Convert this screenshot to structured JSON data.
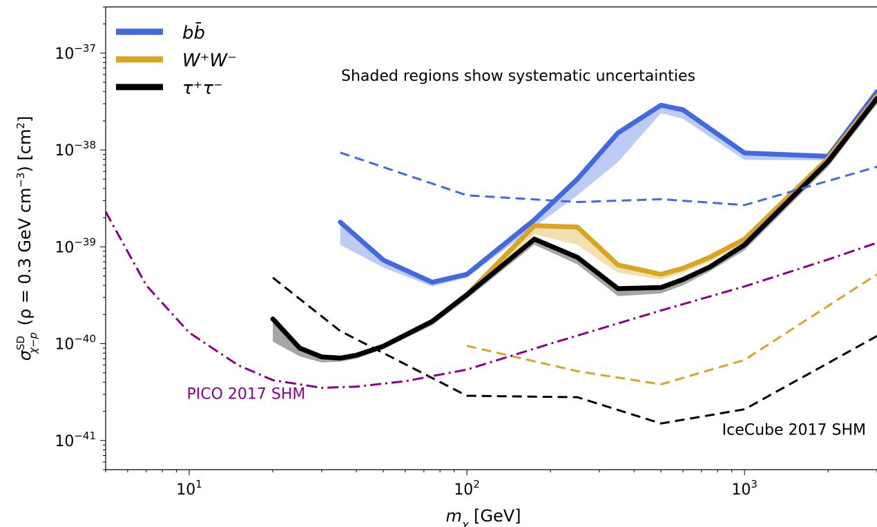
{
  "chart_data": {
    "type": "line",
    "xscale": "log",
    "yscale": "log",
    "xlim": [
      5,
      3000
    ],
    "ylim": [
      5e-42,
      3e-37
    ],
    "xlabel": {
      "base": "m",
      "sub": "χ",
      "rest": " [GeV]"
    },
    "ylabel": {
      "sym": "σ",
      "sup": "SD",
      "sub": "χ−p",
      "rest": " (ρ = 0.3 GeV cm",
      "unit_exp": "−3",
      "rest2": ") [cm",
      "unit_exp2": "2",
      "rest3": "]"
    },
    "xticks": [
      {
        "value": 10,
        "base": "10",
        "exp": "1"
      },
      {
        "value": 100,
        "base": "10",
        "exp": "2"
      },
      {
        "value": 1000,
        "base": "10",
        "exp": "3"
      }
    ],
    "yticks": [
      {
        "value": 1e-41,
        "base": "10",
        "exp": "−41"
      },
      {
        "value": 1e-40,
        "base": "10",
        "exp": "−40"
      },
      {
        "value": 1e-39,
        "base": "10",
        "exp": "−39"
      },
      {
        "value": 1e-38,
        "base": "10",
        "exp": "−38"
      },
      {
        "value": 1e-37,
        "base": "10",
        "exp": "−37"
      }
    ],
    "legend": {
      "placement": "top-left",
      "entries": [
        {
          "label": "bb̄",
          "color": "#4169e1"
        },
        {
          "label": "W⁺W⁻",
          "color": "#daa520"
        },
        {
          "label": "τ⁺τ⁻",
          "color": "#000000"
        }
      ]
    },
    "annotation": "Shaded regions show systematic uncertainties",
    "series": [
      {
        "channel": "bb",
        "style": "solid",
        "color": "#4169e1",
        "x": [
          35,
          50,
          75,
          100,
          175,
          250,
          350,
          500,
          600,
          1000,
          2000,
          3000
        ],
        "y": [
          1.8e-39,
          7.3e-40,
          4.3e-40,
          5.2e-40,
          1.9e-39,
          5e-39,
          1.5e-38,
          2.9e-38,
          2.6e-38,
          9.3e-39,
          8.6e-39,
          4e-38
        ],
        "y_low": [
          1.05e-39,
          6.1e-40,
          3.9e-40,
          4.8e-40,
          1.6e-39,
          3.4e-39,
          7.5e-39,
          2.4e-38,
          2.1e-38,
          7.9e-39,
          7.8e-39,
          3.2e-38
        ]
      },
      {
        "channel": "WW",
        "style": "solid",
        "color": "#daa520",
        "x": [
          100,
          175,
          250,
          350,
          500,
          600,
          750,
          1000,
          2000,
          3000
        ],
        "y": [
          3.2e-40,
          1.65e-39,
          1.6e-39,
          6.5e-40,
          5.2e-40,
          6e-40,
          7.8e-40,
          1.2e-39,
          8.2e-39,
          3.6e-38
        ],
        "y_low": [
          2.9e-40,
          1.35e-39,
          1.05e-39,
          5.4e-40,
          4.6e-40,
          5.4e-40,
          7e-40,
          1.1e-39,
          7.3e-39,
          3e-38
        ]
      },
      {
        "channel": "tautau",
        "style": "solid",
        "color": "#000000",
        "x": [
          20,
          25,
          30,
          35,
          40,
          50,
          75,
          100,
          175,
          250,
          350,
          500,
          600,
          750,
          1000,
          2000,
          3000
        ],
        "y": [
          1.8e-40,
          9e-41,
          7.3e-41,
          7.1e-41,
          7.6e-41,
          9.4e-41,
          1.7e-40,
          3.2e-40,
          1.2e-39,
          7.8e-40,
          3.7e-40,
          3.8e-40,
          4.6e-40,
          6.2e-40,
          1.05e-39,
          7.6e-39,
          3.4e-38
        ],
        "y_low": [
          1.05e-40,
          7.4e-41,
          6.4e-41,
          6.5e-41,
          7e-41,
          8.8e-41,
          1.55e-40,
          2.9e-40,
          1.05e-39,
          6.6e-40,
          3.1e-40,
          3.3e-40,
          4e-40,
          5.6e-40,
          9.2e-40,
          6.7e-39,
          3e-38
        ]
      },
      {
        "channel": "IceCube bb",
        "style": "dashed",
        "color": "#4169e1",
        "x": [
          35,
          100,
          250,
          500,
          1000,
          3000
        ],
        "y": [
          9.4e-39,
          3.4e-39,
          2.9e-39,
          3.1e-39,
          2.7e-39,
          6.7e-39
        ]
      },
      {
        "channel": "IceCube WW",
        "style": "dashed",
        "color": "#daa520",
        "x": [
          100,
          250,
          500,
          1000,
          3000
        ],
        "y": [
          9.5e-41,
          5.2e-41,
          3.8e-41,
          6.8e-41,
          5.2e-40
        ]
      },
      {
        "channel": "IceCube tautau",
        "style": "dashed",
        "color": "#000000",
        "x": [
          20,
          35,
          100,
          250,
          500,
          1000,
          3000
        ],
        "y": [
          4.8e-40,
          1.35e-40,
          2.9e-41,
          2.8e-41,
          1.5e-41,
          2.1e-41,
          1.2e-40
        ]
      },
      {
        "channel": "PICO",
        "style": "dashdot",
        "color": "#8b008b",
        "x": [
          5,
          7,
          10,
          15,
          20,
          30,
          40,
          60,
          100,
          200,
          500,
          1000,
          2000,
          3000
        ],
        "y": [
          2.3e-39,
          4e-40,
          1.3e-40,
          6e-41,
          4.2e-41,
          3.5e-41,
          3.6e-41,
          4.1e-41,
          5.4e-41,
          1e-40,
          2.2e-40,
          3.9e-40,
          7.4e-40,
          1.1e-39
        ]
      }
    ],
    "curve_labels": [
      {
        "text": "PICO 2017 SHM",
        "color": "#8b008b",
        "x": 9.8,
        "y": 2.7e-41
      },
      {
        "text": "IceCube 2017 SHM",
        "color": "#000000",
        "x": 830,
        "y": 1.15e-41
      }
    ]
  }
}
